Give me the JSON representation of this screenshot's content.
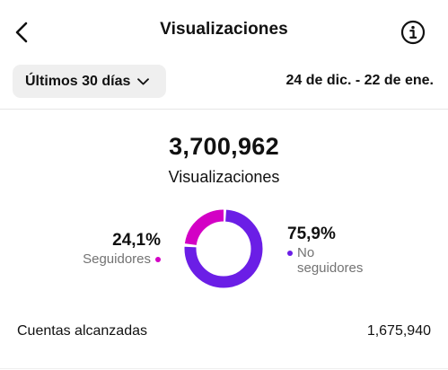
{
  "header": {
    "title": "Visualizaciones",
    "back_icon": "chevron-left-icon",
    "info_icon": "info-circle-icon"
  },
  "filters": {
    "period": "Últimos 30 días",
    "period_icon": "chevron-down-icon",
    "date_range": "24 de dic. - 22 de ene."
  },
  "summary": {
    "total": "3,700,962",
    "label": "Visualizaciones"
  },
  "breakdown": {
    "followers": {
      "percent": "24,1%",
      "label": "Seguidores",
      "color": "#d300c5"
    },
    "non_followers": {
      "percent": "75,9%",
      "label": "No seguidores",
      "color": "#6b1ee6"
    }
  },
  "chart_data": {
    "type": "pie",
    "categories": [
      "Seguidores",
      "No seguidores"
    ],
    "values": [
      24.1,
      75.9
    ],
    "colors": [
      "#d300c5",
      "#6b1ee6"
    ],
    "title": "",
    "donut": true
  },
  "metrics": [
    {
      "label": "Cuentas alcanzadas",
      "value": "1,675,940"
    }
  ]
}
